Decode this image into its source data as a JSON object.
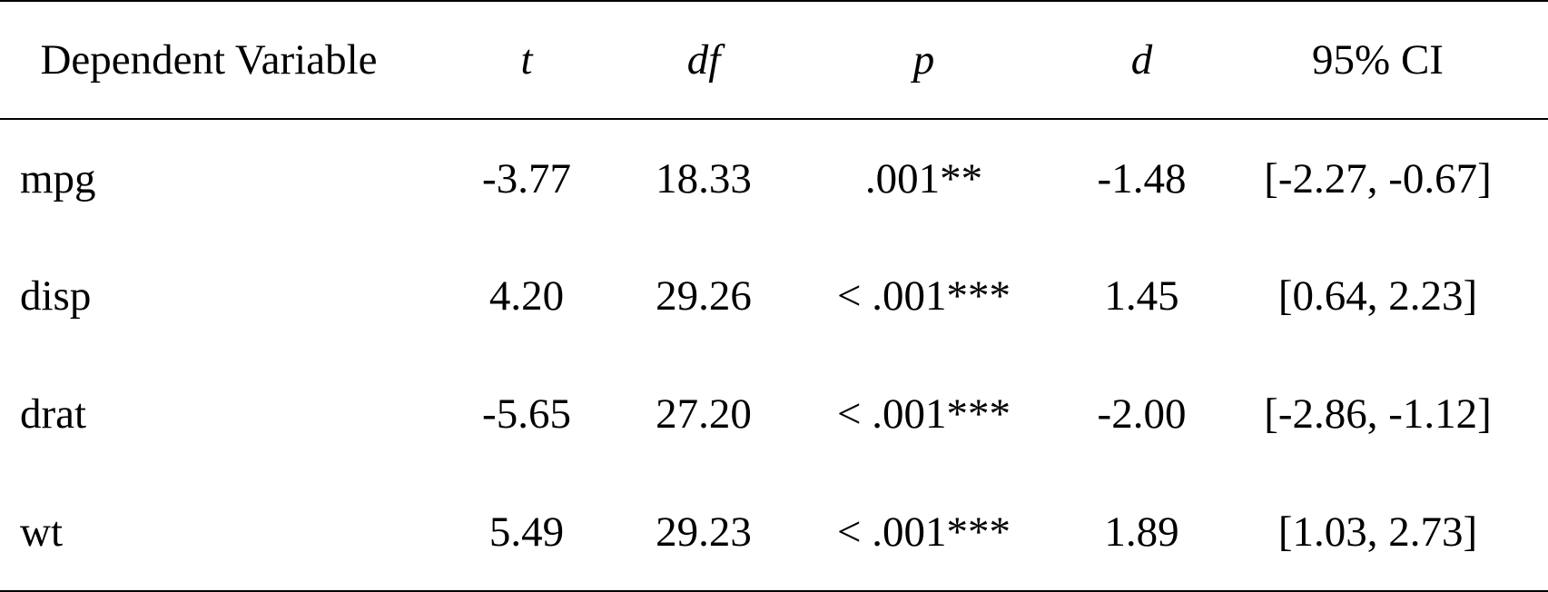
{
  "table": {
    "header": [
      "Dependent Variable",
      "t",
      "df",
      "p",
      "d",
      "95% CI"
    ],
    "rows": [
      [
        "mpg",
        "-3.77",
        "18.33",
        ".001**",
        "-1.48",
        "[-2.27, -0.67]"
      ],
      [
        "disp",
        "4.20",
        "29.26",
        "< .001***",
        "1.45",
        "[0.64, 2.23]"
      ],
      [
        "drat",
        "-5.65",
        "27.20",
        "< .001***",
        "-2.00",
        "[-2.86, -1.12]"
      ],
      [
        "wt",
        "5.49",
        "29.23",
        "< .001***",
        "1.89",
        "[1.03, 2.73]"
      ]
    ]
  }
}
